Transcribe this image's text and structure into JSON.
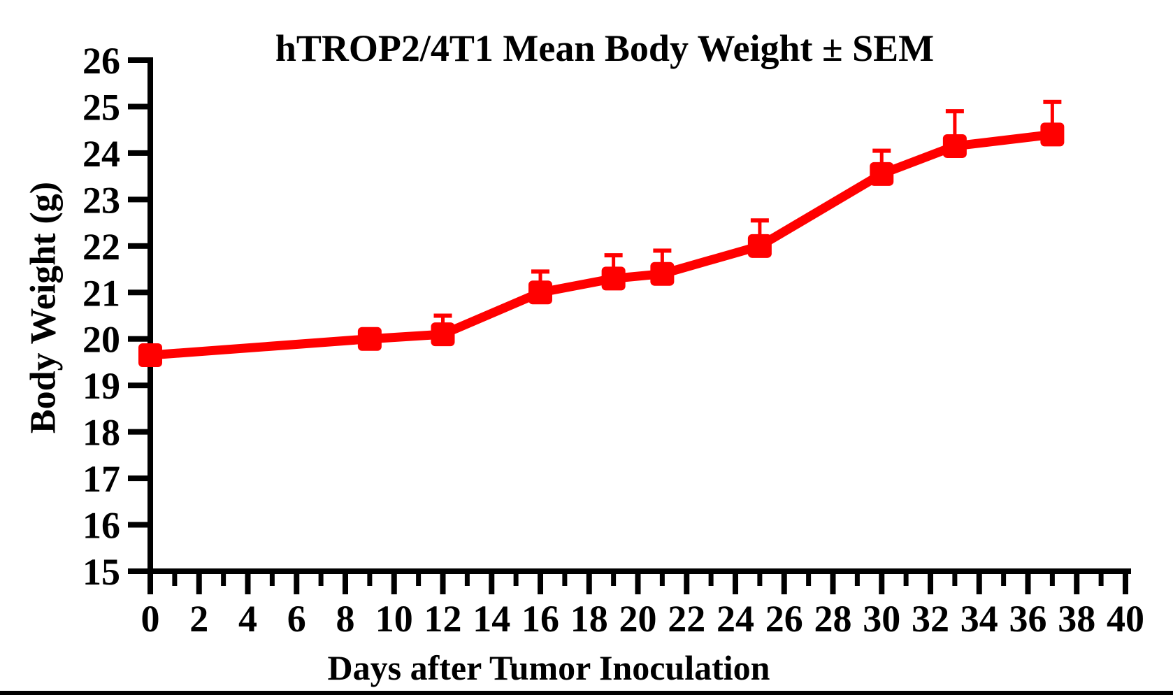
{
  "figure": {
    "background_color": "#FFFFFF",
    "axis_color": "#000000",
    "bottom_edge_bar_color": "#000000"
  },
  "chart_data": {
    "type": "line",
    "title": "hTROP2/4T1 Mean Body Weight ± SEM",
    "xlabel": "Days after Tumor Inoculation",
    "ylabel": "Body Weight (g)",
    "x": [
      0,
      9,
      12,
      16,
      19,
      21,
      25,
      30,
      33,
      37
    ],
    "series": [
      {
        "name": "hTROP2/4T1",
        "color": "#FF0000",
        "marker": "square",
        "values": [
          19.65,
          20.0,
          20.1,
          21.0,
          21.3,
          21.4,
          22.0,
          23.55,
          24.15,
          24.4
        ],
        "sem_upper": [
          0,
          0,
          0.4,
          0.45,
          0.5,
          0.5,
          0.55,
          0.5,
          0.75,
          0.7
        ]
      }
    ],
    "error_bars": "upper-only",
    "xlim": [
      0,
      40
    ],
    "ylim": [
      15,
      26
    ],
    "xticks_major": [
      0,
      2,
      4,
      6,
      8,
      10,
      12,
      14,
      16,
      18,
      20,
      22,
      24,
      26,
      28,
      30,
      32,
      34,
      36,
      38,
      40
    ],
    "xticks_minor": [
      1,
      3,
      5,
      7,
      9,
      11,
      13,
      15,
      17,
      19,
      21,
      23,
      25,
      27,
      29,
      31,
      33,
      35,
      37,
      39
    ],
    "yticks": [
      15,
      16,
      17,
      18,
      19,
      20,
      21,
      22,
      23,
      24,
      25,
      26
    ],
    "grid": false,
    "legend": "none"
  }
}
